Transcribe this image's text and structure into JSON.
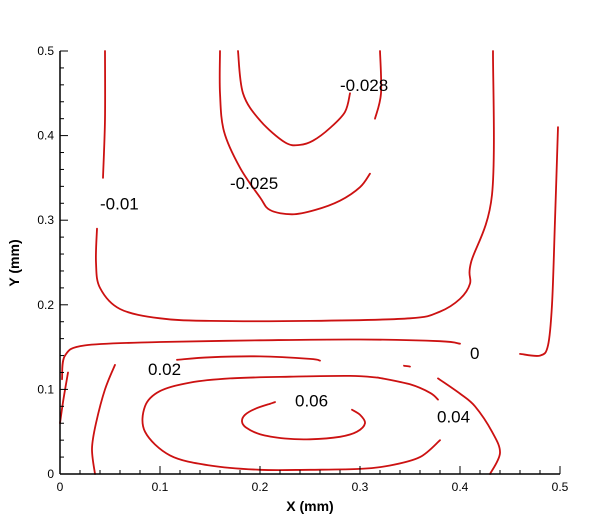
{
  "chart_data": {
    "type": "contour",
    "title": "",
    "xlabel": "X (mm)",
    "ylabel": "Y (mm)",
    "xlim": [
      0,
      0.5
    ],
    "ylim": [
      0,
      0.5
    ],
    "xticks": [
      "0",
      "0.1",
      "0.2",
      "0.3",
      "0.4",
      "0.5"
    ],
    "yticks": [
      "0",
      "0.1",
      "0.2",
      "0.3",
      "0.4",
      "0.5"
    ],
    "line_color": "#cc1111",
    "contours": [
      {
        "level": "-0.028",
        "points": [
          [
            0.178,
            0.5
          ],
          [
            0.183,
            0.45
          ],
          [
            0.2,
            0.418
          ],
          [
            0.225,
            0.392
          ],
          [
            0.24,
            0.389
          ],
          [
            0.253,
            0.394
          ],
          [
            0.27,
            0.409
          ],
          [
            0.285,
            0.428
          ],
          [
            0.29,
            0.45
          ]
        ]
      },
      {
        "level": "-0.025",
        "points": [
          [
            0.16,
            0.5
          ],
          [
            0.16,
            0.45
          ],
          [
            0.164,
            0.405
          ],
          [
            0.18,
            0.362
          ],
          [
            0.2,
            0.327
          ],
          [
            0.21,
            0.312
          ],
          [
            0.232,
            0.307
          ],
          [
            0.255,
            0.312
          ],
          [
            0.28,
            0.323
          ],
          [
            0.3,
            0.339
          ],
          [
            0.31,
            0.355
          ]
        ]
      },
      {
        "level": "-0.025",
        "points": [
          [
            0.32,
            0.5
          ],
          [
            0.321,
            0.45
          ],
          [
            0.315,
            0.42
          ]
        ]
      },
      {
        "level": "-0.01",
        "points": [
          [
            0.045,
            0.5
          ],
          [
            0.045,
            0.42
          ],
          [
            0.043,
            0.35
          ]
        ]
      },
      {
        "level": "-0.01",
        "points": [
          [
            0.037,
            0.29
          ],
          [
            0.036,
            0.25
          ],
          [
            0.04,
            0.22
          ],
          [
            0.06,
            0.195
          ],
          [
            0.1,
            0.184
          ],
          [
            0.15,
            0.181
          ],
          [
            0.25,
            0.181
          ],
          [
            0.35,
            0.184
          ],
          [
            0.38,
            0.192
          ],
          [
            0.4,
            0.207
          ],
          [
            0.41,
            0.225
          ],
          [
            0.411,
            0.25
          ],
          [
            0.432,
            0.33
          ],
          [
            0.433,
            0.5
          ]
        ]
      },
      {
        "level": "0",
        "points": [
          [
            0.002,
            0.112
          ],
          [
            0.005,
            0.14
          ],
          [
            0.025,
            0.152
          ],
          [
            0.1,
            0.156
          ],
          [
            0.2,
            0.158
          ],
          [
            0.3,
            0.159
          ],
          [
            0.38,
            0.157
          ],
          [
            0.4,
            0.154
          ]
        ]
      },
      {
        "level": "0",
        "points": [
          [
            0.46,
            0.142
          ],
          [
            0.48,
            0.14
          ],
          [
            0.488,
            0.152
          ],
          [
            0.492,
            0.2
          ],
          [
            0.495,
            0.3
          ],
          [
            0.498,
            0.41
          ]
        ]
      },
      {
        "level": "0.02",
        "points": [
          [
            0.008,
            0.12
          ],
          [
            0.003,
            0.085
          ],
          [
            0,
            0.06
          ]
        ]
      },
      {
        "level": "0.02",
        "points": [
          [
            0.055,
            0.129
          ],
          [
            0.045,
            0.1
          ],
          [
            0.036,
            0.06
          ],
          [
            0.032,
            0.03
          ],
          [
            0.035,
            0
          ]
        ]
      },
      {
        "level": "0.02",
        "points": [
          [
            0.117,
            0.135
          ],
          [
            0.15,
            0.138
          ],
          [
            0.2,
            0.139
          ],
          [
            0.25,
            0.136
          ],
          [
            0.26,
            0.134
          ]
        ]
      },
      {
        "level": "0.02",
        "points": [
          [
            0.344,
            0.128
          ],
          [
            0.35,
            0.127
          ]
        ]
      },
      {
        "level": "0.02",
        "points": [
          [
            0.378,
            0.113
          ],
          [
            0.4,
            0.095
          ],
          [
            0.415,
            0.08
          ],
          [
            0.432,
            0.05
          ],
          [
            0.44,
            0.025
          ],
          [
            0.43,
            0
          ]
        ]
      },
      {
        "level": "0.04",
        "points": [
          [
            0.318,
            0.114
          ],
          [
            0.35,
            0.106
          ],
          [
            0.37,
            0.096
          ],
          [
            0.378,
            0.088
          ]
        ]
      },
      {
        "level": "0.04",
        "points": [
          [
            0.38,
            0.04
          ],
          [
            0.36,
            0.02
          ],
          [
            0.33,
            0.01
          ],
          [
            0.3,
            0.006
          ],
          [
            0.25,
            0.005
          ],
          [
            0.2,
            0.005
          ],
          [
            0.15,
            0.01
          ],
          [
            0.11,
            0.022
          ],
          [
            0.085,
            0.05
          ],
          [
            0.085,
            0.08
          ],
          [
            0.1,
            0.098
          ],
          [
            0.13,
            0.108
          ],
          [
            0.17,
            0.113
          ],
          [
            0.23,
            0.115
          ],
          [
            0.29,
            0.116
          ],
          [
            0.318,
            0.114
          ]
        ]
      },
      {
        "level": "0.06",
        "points": [
          [
            0.21,
            0.083
          ],
          [
            0.195,
            0.077
          ],
          [
            0.185,
            0.07
          ],
          [
            0.182,
            0.062
          ],
          [
            0.186,
            0.055
          ],
          [
            0.2,
            0.047
          ],
          [
            0.225,
            0.042
          ],
          [
            0.25,
            0.041
          ],
          [
            0.28,
            0.044
          ],
          [
            0.297,
            0.05
          ],
          [
            0.305,
            0.06
          ],
          [
            0.3,
            0.07
          ],
          [
            0.292,
            0.076
          ]
        ]
      },
      {
        "level": "0.06",
        "points": [
          [
            0.21,
            0.083
          ],
          [
            0.215,
            0.085
          ]
        ]
      }
    ],
    "labels": [
      {
        "text": "-0.028",
        "x": 0.28,
        "y": 0.46
      },
      {
        "text": "-0.025",
        "x": 0.17,
        "y": 0.344
      },
      {
        "text": "-0.01",
        "x": 0.04,
        "y": 0.32
      },
      {
        "text": "0",
        "x": 0.41,
        "y": 0.143
      },
      {
        "text": "0.02",
        "x": 0.088,
        "y": 0.124
      },
      {
        "text": "0.06",
        "x": 0.235,
        "y": 0.087
      },
      {
        "text": "0.04",
        "x": 0.377,
        "y": 0.068
      }
    ]
  }
}
